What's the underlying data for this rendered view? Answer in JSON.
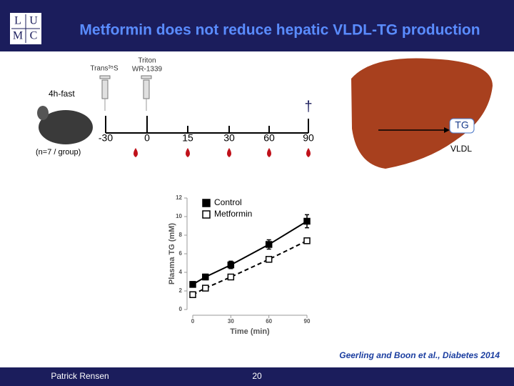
{
  "header": {
    "title": "Metformin does not reduce hepatic VLDL-TG production",
    "logo": [
      "L",
      "U",
      "M",
      "C"
    ]
  },
  "protocol": {
    "tracer": "Trans³⁵S",
    "inhibitor": [
      "Triton",
      "WR-1339"
    ],
    "fasting": "4h-fast",
    "group_size": "(n=7 / group)",
    "timepoints": [
      "-30",
      "0",
      "15",
      "30",
      "60",
      "90"
    ],
    "product": "TG",
    "particle": "VLDL"
  },
  "chart_data": {
    "type": "line",
    "x_label": "Time (min)",
    "y_label": "Plasma TG (mM)",
    "x": [
      0,
      10,
      30,
      60,
      90
    ],
    "series": [
      {
        "name": "Control",
        "color": "#000000",
        "marker_fill": "#000000",
        "dashed": false,
        "values": [
          2.7,
          3.5,
          4.8,
          7.0,
          9.5
        ],
        "errors": [
          0.3,
          0.3,
          0.4,
          0.5,
          0.7
        ]
      },
      {
        "name": "Metformin",
        "color": "#000000",
        "marker_fill": "#ffffff",
        "dashed": true,
        "values": [
          1.6,
          2.3,
          3.5,
          5.4,
          7.4
        ]
      }
    ],
    "xlim": [
      0,
      90
    ],
    "xticks": [
      0,
      30,
      60,
      90
    ],
    "ylim": [
      0,
      12
    ],
    "yticks": [
      0,
      2,
      4,
      6,
      8,
      10,
      12
    ]
  },
  "citation": "Geerling and Boon et al., Diabetes 2014",
  "footer": {
    "author": "Patrick Rensen",
    "page": "20"
  }
}
